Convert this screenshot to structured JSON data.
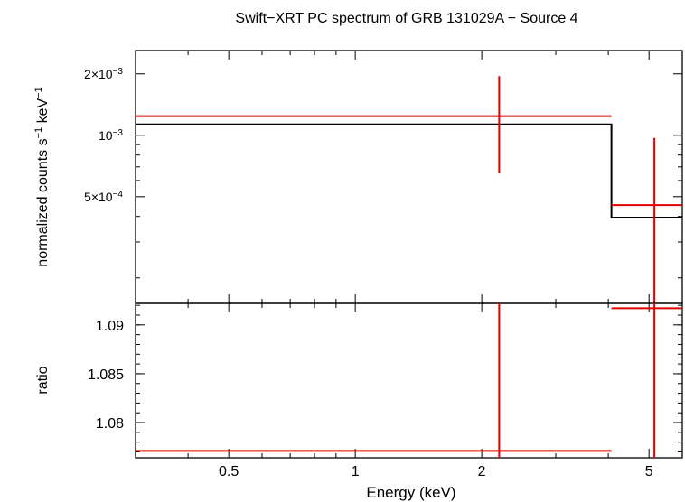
{
  "title": "Swift−XRT PC spectrum of GRB 131029A − Source 4",
  "colors": {
    "data": "#e00000",
    "model": "#000000",
    "frame": "#000000"
  },
  "chart_data": [
    {
      "type": "step",
      "panel": "top",
      "ylabel": {
        "main": "normalized counts s",
        "sup1": "−1",
        "mid": " keV",
        "sup2": "−1"
      },
      "xscale": "log",
      "yscale": "log",
      "xlim": [
        0.3,
        6.0
      ],
      "ylim": [
        0.00015,
        0.0026
      ],
      "yticks": [
        {
          "value": 0.002,
          "label": "2×10",
          "exp": "−3"
        },
        {
          "value": 0.001,
          "label": "10",
          "exp": "−3"
        },
        {
          "value": 0.0005,
          "label": "5×10",
          "exp": "−4"
        }
      ],
      "yminor": [
        0.0002,
        0.0003,
        0.0004,
        0.0006,
        0.0007,
        0.0008,
        0.0009
      ],
      "series": [
        {
          "role": "data",
          "points": [
            {
              "x": 2.2,
              "xlo": 0.3,
              "xhi": 4.07,
              "y": 0.00124,
              "ylo": 0.00065,
              "yhi": 0.00195
            },
            {
              "x": 5.15,
              "xlo": 4.07,
              "xhi": 6.0,
              "y": 0.000455,
              "ylo": 0.00015,
              "yhi": 0.00097
            }
          ]
        },
        {
          "role": "model",
          "steps": [
            {
              "xlo": 0.3,
              "xhi": 4.07,
              "y": 0.00113
            },
            {
              "xlo": 4.07,
              "xhi": 6.0,
              "y": 0.000395
            }
          ]
        }
      ]
    },
    {
      "type": "scatter",
      "panel": "bottom",
      "ylabel": "ratio",
      "xlabel": "Energy (keV)",
      "xscale": "log",
      "xlim": [
        0.3,
        6.0
      ],
      "ylim": [
        1.0764,
        1.0922
      ],
      "yticks": [
        {
          "value": 1.09,
          "label": "1.09"
        },
        {
          "value": 1.085,
          "label": "1.085"
        },
        {
          "value": 1.08,
          "label": "1.08"
        }
      ],
      "yminor_step": 0.001,
      "xticks": [
        {
          "value": 0.5,
          "label": "0.5"
        },
        {
          "value": 1,
          "label": "1"
        },
        {
          "value": 2,
          "label": "2"
        },
        {
          "value": 5,
          "label": "5"
        }
      ],
      "xminor": [
        0.4,
        0.6,
        0.7,
        0.8,
        0.9,
        3,
        4
      ],
      "series": [
        {
          "role": "data",
          "points": [
            {
              "x": 2.2,
              "xlo": 0.3,
              "xhi": 4.07,
              "y": 1.0771,
              "ylo": 1.06,
              "yhi": 1.1
            },
            {
              "x": 5.15,
              "xlo": 4.07,
              "xhi": 6.0,
              "y": 1.0917,
              "ylo": 1.06,
              "yhi": 1.1
            }
          ]
        }
      ]
    }
  ]
}
